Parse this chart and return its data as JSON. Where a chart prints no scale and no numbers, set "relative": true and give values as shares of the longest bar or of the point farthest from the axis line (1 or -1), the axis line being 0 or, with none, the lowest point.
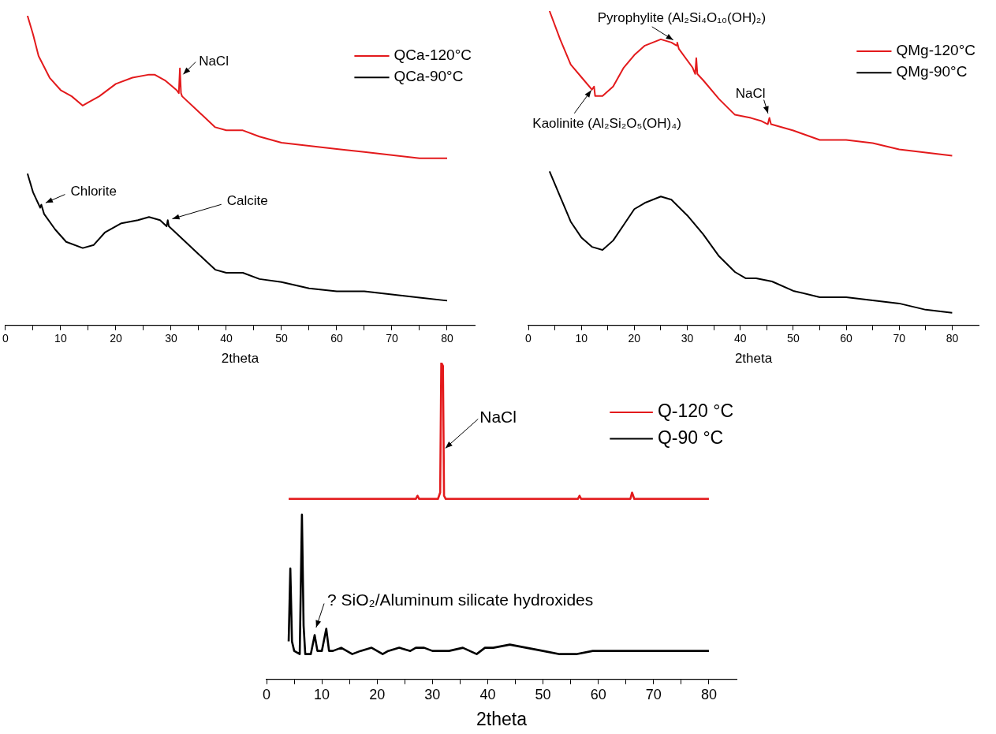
{
  "chart_data": [
    {
      "type": "line",
      "relative": true,
      "xlabel": "2theta",
      "xlim": [
        0,
        85
      ],
      "xticks": [
        0,
        {
          "value": 5,
          "label": null
        },
        10,
        {
          "value": 15,
          "label": null
        },
        20,
        {
          "value": 25,
          "label": null
        },
        30,
        {
          "value": 35,
          "label": null
        },
        40,
        {
          "value": 45,
          "label": null
        },
        50,
        {
          "value": 55,
          "label": null
        },
        60,
        {
          "value": 65,
          "label": null
        },
        70,
        {
          "value": 75,
          "label": null
        },
        80
      ],
      "tick_labels": "x",
      "legend": "top right",
      "series": [
        {
          "name": "QCa-120°C",
          "color": "#e31a1c",
          "x": [
            4,
            5,
            6,
            8,
            10,
            12,
            14,
            15,
            17,
            20,
            23,
            26,
            27,
            29,
            31,
            31.4,
            31.6,
            31.8,
            32,
            35,
            38,
            40,
            43,
            46,
            50,
            55,
            60,
            65,
            70,
            75,
            80
          ],
          "values": [
            1.0,
            0.94,
            0.87,
            0.8,
            0.76,
            0.74,
            0.71,
            0.72,
            0.74,
            0.78,
            0.8,
            0.81,
            0.81,
            0.79,
            0.76,
            0.75,
            0.83,
            0.75,
            0.74,
            0.69,
            0.64,
            0.63,
            0.63,
            0.61,
            0.59,
            0.58,
            0.57,
            0.56,
            0.55,
            0.54,
            0.54
          ]
        },
        {
          "name": "QCa-90°C",
          "color": "#000000",
          "x": [
            4,
            5,
            6.3,
            6.5,
            7,
            9,
            11,
            14,
            16,
            18,
            21,
            24,
            26,
            28,
            29.2,
            29.4,
            29.6,
            32,
            35,
            38,
            40,
            43,
            46,
            50,
            55,
            60,
            65,
            70,
            75,
            80
          ],
          "values": [
            0.49,
            0.43,
            0.38,
            0.39,
            0.36,
            0.31,
            0.27,
            0.25,
            0.26,
            0.3,
            0.33,
            0.34,
            0.35,
            0.34,
            0.32,
            0.34,
            0.32,
            0.28,
            0.23,
            0.18,
            0.17,
            0.17,
            0.15,
            0.14,
            0.12,
            0.11,
            0.11,
            0.1,
            0.09,
            0.08
          ]
        }
      ],
      "annotations": [
        {
          "text": "NaCl",
          "x": 31.6,
          "y": 0.8
        },
        {
          "text": "Chlorite",
          "x": 6.5,
          "y": 0.39
        },
        {
          "text": "Calcite",
          "x": 29.4,
          "y": 0.34
        }
      ]
    },
    {
      "type": "line",
      "relative": true,
      "xlabel": "2theta",
      "xlim": [
        0,
        85
      ],
      "xticks": [
        0,
        {
          "value": 5,
          "label": null
        },
        10,
        {
          "value": 15,
          "label": null
        },
        20,
        {
          "value": 25,
          "label": null
        },
        30,
        {
          "value": 35,
          "label": null
        },
        40,
        {
          "value": 45,
          "label": null
        },
        50,
        {
          "value": 55,
          "label": null
        },
        60,
        {
          "value": 65,
          "label": null
        },
        70,
        {
          "value": 75,
          "label": null
        },
        80
      ],
      "tick_labels": "x",
      "legend": "top right",
      "series": [
        {
          "name": "QMg-120°C",
          "color": "#e31a1c",
          "x": [
            4,
            6,
            8,
            10,
            12,
            12.4,
            12.6,
            14,
            16,
            18,
            20,
            22,
            25,
            27,
            28,
            28.1,
            28.4,
            31,
            31.5,
            31.7,
            31.9,
            33,
            36,
            39,
            42,
            44,
            45.2,
            45.5,
            45.8,
            50,
            55,
            60,
            65,
            70,
            75,
            80
          ],
          "values": [
            1.0,
            0.91,
            0.83,
            0.79,
            0.75,
            0.76,
            0.73,
            0.73,
            0.76,
            0.82,
            0.86,
            0.89,
            0.91,
            0.9,
            0.89,
            0.9,
            0.88,
            0.82,
            0.8,
            0.85,
            0.8,
            0.78,
            0.72,
            0.67,
            0.66,
            0.65,
            0.64,
            0.66,
            0.64,
            0.62,
            0.59,
            0.59,
            0.58,
            0.56,
            0.55,
            0.54
          ]
        },
        {
          "name": "QMg-90°C",
          "color": "#000000",
          "x": [
            4,
            6,
            8,
            10,
            12,
            14,
            16,
            18,
            20,
            22,
            25,
            27,
            30,
            33,
            36,
            39,
            41,
            43,
            46,
            50,
            55,
            60,
            65,
            70,
            75,
            80
          ],
          "values": [
            0.49,
            0.41,
            0.33,
            0.28,
            0.25,
            0.24,
            0.27,
            0.32,
            0.37,
            0.39,
            0.41,
            0.4,
            0.35,
            0.29,
            0.22,
            0.17,
            0.15,
            0.15,
            0.14,
            0.11,
            0.09,
            0.09,
            0.08,
            0.07,
            0.05,
            0.04
          ]
        }
      ],
      "annotations": [
        {
          "text": "Pyrophylite (Al₂Si₄O₁₀(OH)₂)",
          "x": 28.1,
          "y": 0.9
        },
        {
          "text": "Kaolinite (Al₂Si₂O₅(OH)₄)",
          "x": 12.4,
          "y": 0.76
        },
        {
          "text": "NaCl",
          "x": 45.5,
          "y": 0.66
        }
      ]
    },
    {
      "type": "line",
      "relative": true,
      "xlabel": "2theta",
      "xlim": [
        0,
        85
      ],
      "xticks": [
        0,
        {
          "value": 5,
          "label": null
        },
        10,
        {
          "value": 15,
          "label": null
        },
        20,
        {
          "value": 25,
          "label": null
        },
        30,
        {
          "value": 35,
          "label": null
        },
        40,
        {
          "value": 45,
          "label": null
        },
        50,
        {
          "value": 55,
          "label": null
        },
        60,
        {
          "value": 65,
          "label": null
        },
        70,
        {
          "value": 75,
          "label": null
        },
        80
      ],
      "tick_labels": "x",
      "legend": "top right",
      "series": [
        {
          "name": "Q-120 °C",
          "color": "#e31a1c",
          "x": [
            4,
            10,
            20,
            27,
            27.3,
            27.6,
            31,
            31.4,
            31.6,
            31.9,
            32.1,
            32.4,
            40,
            50,
            56.3,
            56.6,
            56.9,
            65.8,
            66.1,
            66.5,
            70,
            80
          ],
          "values": [
            0.57,
            0.57,
            0.57,
            0.57,
            0.58,
            0.57,
            0.57,
            0.59,
            1.0,
            0.99,
            0.58,
            0.57,
            0.57,
            0.57,
            0.57,
            0.58,
            0.57,
            0.57,
            0.59,
            0.57,
            0.57,
            0.57
          ]
        },
        {
          "name": "Q-90 °C",
          "color": "#000000",
          "x": [
            4,
            4.3,
            4.6,
            5,
            6,
            6.4,
            6.7,
            7,
            8,
            8.7,
            9.2,
            10,
            10.8,
            11.3,
            12,
            13.5,
            15.5,
            17,
            19,
            21,
            22,
            24,
            26,
            27,
            28.5,
            30,
            33,
            35.5,
            38,
            39.5,
            41,
            44,
            47,
            50,
            53,
            56,
            59,
            65,
            70,
            80
          ],
          "values": [
            0.12,
            0.35,
            0.12,
            0.09,
            0.08,
            0.52,
            0.17,
            0.08,
            0.08,
            0.14,
            0.09,
            0.09,
            0.16,
            0.09,
            0.09,
            0.1,
            0.08,
            0.09,
            0.1,
            0.08,
            0.09,
            0.1,
            0.09,
            0.1,
            0.1,
            0.09,
            0.09,
            0.1,
            0.08,
            0.1,
            0.1,
            0.11,
            0.1,
            0.09,
            0.08,
            0.08,
            0.09,
            0.09,
            0.09,
            0.09
          ]
        }
      ],
      "annotations": [
        {
          "text": "NaCl",
          "x": 31.7,
          "y": 0.72
        },
        {
          "text": "? SiO₂/Aluminum silicate hydroxides",
          "x": 8.7,
          "y": 0.15
        }
      ]
    }
  ]
}
